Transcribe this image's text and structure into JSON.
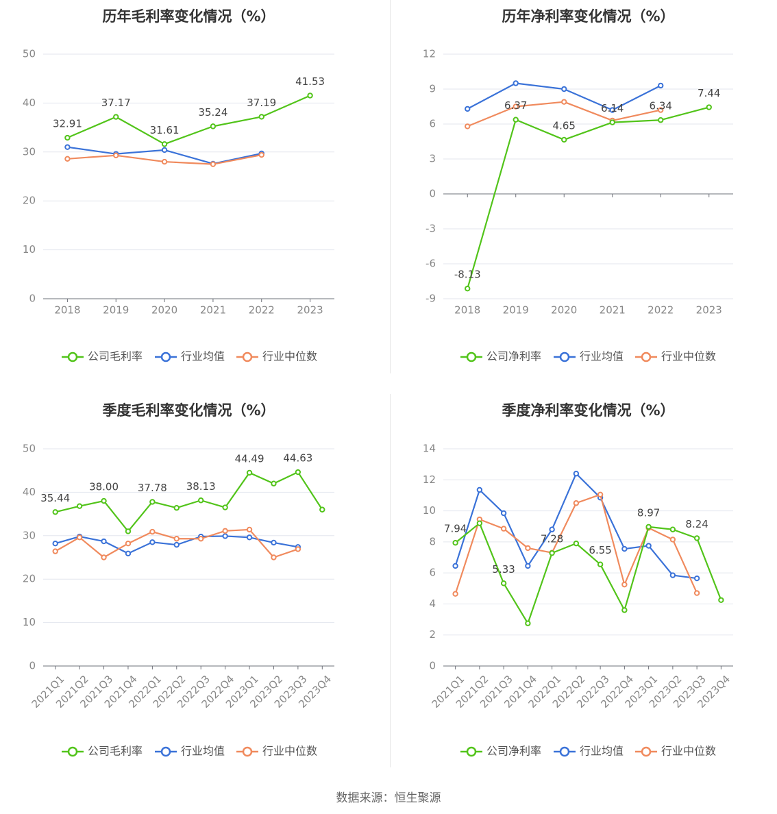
{
  "source_text": "数据来源：恒生聚源",
  "colors": {
    "company": "#52c41a",
    "avg": "#3a72d8",
    "median": "#f08a5d"
  },
  "chart_data": [
    {
      "type": "line",
      "title": "历年毛利率变化情况（%）",
      "categories": [
        "2018",
        "2019",
        "2020",
        "2021",
        "2022",
        "2023"
      ],
      "ylim": [
        0,
        50
      ],
      "yticks": [
        "0",
        "10",
        "20",
        "30",
        "40",
        "50"
      ],
      "grid": true,
      "legend_position": "bottom",
      "series": [
        {
          "name": "公司毛利率",
          "values": [
            32.91,
            37.17,
            31.61,
            35.24,
            37.19,
            41.53
          ],
          "labels": [
            "32.91",
            "37.17",
            "31.61",
            "35.24",
            "37.19",
            "41.53"
          ]
        },
        {
          "name": "行业均值",
          "values": [
            31.0,
            29.6,
            30.4,
            27.6,
            29.7,
            null
          ]
        },
        {
          "name": "行业中位数",
          "values": [
            28.6,
            29.3,
            28.0,
            27.5,
            29.4,
            null
          ]
        }
      ]
    },
    {
      "type": "line",
      "title": "历年净利率变化情况（%）",
      "categories": [
        "2018",
        "2019",
        "2020",
        "2021",
        "2022",
        "2023"
      ],
      "ylim": [
        -9,
        12
      ],
      "yticks": [
        "-9",
        "-6",
        "-3",
        "0",
        "3",
        "6",
        "9",
        "12"
      ],
      "grid": true,
      "legend_position": "bottom",
      "series": [
        {
          "name": "公司净利率",
          "values": [
            -8.13,
            6.37,
            4.65,
            6.14,
            6.34,
            7.44
          ],
          "labels": [
            "-8.13",
            "6.37",
            "4.65",
            "6.14",
            "6.34",
            "7.44"
          ]
        },
        {
          "name": "行业均值",
          "values": [
            7.3,
            9.5,
            9.0,
            7.2,
            9.3,
            null
          ]
        },
        {
          "name": "行业中位数",
          "values": [
            5.8,
            7.5,
            7.9,
            6.3,
            7.2,
            null
          ]
        }
      ]
    },
    {
      "type": "line",
      "title": "季度毛利率变化情况（%）",
      "categories": [
        "2021Q1",
        "2021Q2",
        "2021Q3",
        "2021Q4",
        "2022Q1",
        "2022Q2",
        "2022Q3",
        "2022Q4",
        "2023Q1",
        "2023Q2",
        "2023Q3",
        "2023Q4"
      ],
      "ylim": [
        0,
        50
      ],
      "yticks": [
        "0",
        "10",
        "20",
        "30",
        "40",
        "50"
      ],
      "grid": true,
      "legend_position": "bottom",
      "series": [
        {
          "name": "公司毛利率",
          "values": [
            35.44,
            36.8,
            38.0,
            31.0,
            37.78,
            36.4,
            38.13,
            36.5,
            44.49,
            42.0,
            44.63,
            36.0
          ],
          "labels": [
            "35.44",
            "",
            "38.00",
            "",
            "37.78",
            "",
            "38.13",
            "",
            "44.49",
            "",
            "44.63",
            ""
          ]
        },
        {
          "name": "行业均值",
          "values": [
            28.2,
            29.8,
            28.7,
            25.9,
            28.5,
            27.9,
            29.8,
            29.9,
            29.6,
            28.4,
            27.4,
            null
          ]
        },
        {
          "name": "行业中位数",
          "values": [
            26.4,
            29.6,
            25.0,
            28.2,
            30.9,
            29.3,
            29.3,
            31.1,
            31.4,
            25.0,
            26.9,
            null
          ]
        }
      ]
    },
    {
      "type": "line",
      "title": "季度净利率变化情况（%）",
      "categories": [
        "2021Q1",
        "2021Q2",
        "2021Q3",
        "2021Q4",
        "2022Q1",
        "2022Q2",
        "2022Q3",
        "2022Q4",
        "2023Q1",
        "2023Q2",
        "2023Q3",
        "2023Q4"
      ],
      "ylim": [
        0,
        14
      ],
      "yticks": [
        "0",
        "2",
        "4",
        "6",
        "8",
        "10",
        "12",
        "14"
      ],
      "grid": true,
      "legend_position": "bottom",
      "series": [
        {
          "name": "公司净利率",
          "values": [
            7.94,
            9.2,
            5.33,
            2.75,
            7.28,
            7.9,
            6.55,
            3.6,
            8.97,
            8.8,
            8.24,
            4.25
          ],
          "labels": [
            "7.94",
            "",
            "5.33",
            "",
            "7.28",
            "",
            "6.55",
            "",
            "8.97",
            "",
            "8.24",
            ""
          ]
        },
        {
          "name": "行业均值",
          "values": [
            6.45,
            11.35,
            9.85,
            6.45,
            8.8,
            12.4,
            10.85,
            7.55,
            7.75,
            5.85,
            5.65,
            null
          ]
        },
        {
          "name": "行业中位数",
          "values": [
            4.65,
            9.45,
            8.85,
            7.6,
            7.3,
            10.5,
            11.05,
            5.25,
            8.9,
            8.15,
            4.7,
            null
          ]
        }
      ]
    }
  ]
}
